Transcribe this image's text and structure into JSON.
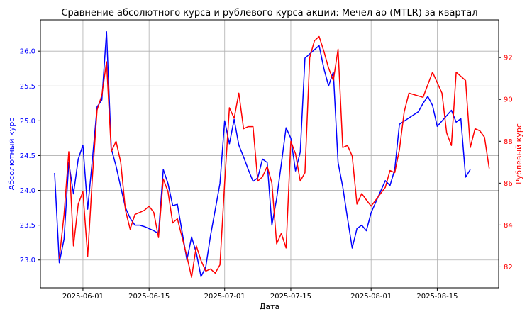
{
  "chart_data": {
    "type": "line",
    "title": "Сравнение абсолютного курса и рублевого курса акции: Мечел ао (MTLR) за квартал",
    "xlabel": "Дата",
    "ylabel_left": "Абсолютный курс",
    "ylabel_right": "Рублевый курс",
    "grid": true,
    "x_range": [
      "2025-05-23",
      "2025-08-28"
    ],
    "x_ticks": [
      "2025-06-01",
      "2025-06-15",
      "2025-07-01",
      "2025-07-15",
      "2025-08-01",
      "2025-08-15"
    ],
    "y_left_range": [
      22.6,
      26.45
    ],
    "y_left_ticks": [
      23.0,
      23.5,
      24.0,
      24.5,
      25.0,
      25.5,
      26.0
    ],
    "y_right_range": [
      81.0,
      93.8
    ],
    "y_right_ticks": [
      82,
      84,
      86,
      88,
      90,
      92
    ],
    "colors": {
      "absolute": "#0000ff",
      "ruble": "#ff0000",
      "grid": "#b0b0b0"
    },
    "series": [
      {
        "name": "",
        "axis": "left",
        "color": "#0000ff",
        "points": [
          [
            "2025-05-26",
            24.25
          ],
          [
            "2025-05-27",
            22.96
          ],
          [
            "2025-05-28",
            23.3
          ],
          [
            "2025-05-29",
            24.4
          ],
          [
            "2025-05-30",
            23.95
          ],
          [
            "2025-05-31",
            24.45
          ],
          [
            "2025-06-01",
            24.65
          ],
          [
            "2025-06-02",
            23.73
          ],
          [
            "2025-06-03",
            24.45
          ],
          [
            "2025-06-04",
            25.2
          ],
          [
            "2025-06-05",
            25.3
          ],
          [
            "2025-06-06",
            26.28
          ],
          [
            "2025-06-07",
            24.6
          ],
          [
            "2025-06-08",
            24.35
          ],
          [
            "2025-06-09",
            24.05
          ],
          [
            "2025-06-10",
            23.75
          ],
          [
            "2025-06-11",
            23.6
          ],
          [
            "2025-06-12",
            23.5
          ],
          [
            "2025-06-13",
            23.5
          ],
          [
            "2025-06-14",
            23.48
          ],
          [
            "2025-06-15",
            23.45
          ],
          [
            "2025-06-16",
            23.42
          ],
          [
            "2025-06-17",
            23.38
          ],
          [
            "2025-06-18",
            24.3
          ],
          [
            "2025-06-19",
            24.1
          ],
          [
            "2025-06-20",
            23.78
          ],
          [
            "2025-06-21",
            23.8
          ],
          [
            "2025-06-22",
            23.4
          ],
          [
            "2025-06-23",
            23.0
          ],
          [
            "2025-06-24",
            23.33
          ],
          [
            "2025-06-25",
            23.1
          ],
          [
            "2025-06-26",
            22.76
          ],
          [
            "2025-06-27",
            22.9
          ],
          [
            "2025-06-28",
            23.35
          ],
          [
            "2025-06-29",
            23.72
          ],
          [
            "2025-06-30",
            24.1
          ],
          [
            "2025-07-01",
            25.0
          ],
          [
            "2025-07-02",
            24.67
          ],
          [
            "2025-07-03",
            25.02
          ],
          [
            "2025-07-04",
            24.65
          ],
          [
            "2025-07-05",
            24.48
          ],
          [
            "2025-07-06",
            24.3
          ],
          [
            "2025-07-07",
            24.13
          ],
          [
            "2025-07-08",
            24.18
          ],
          [
            "2025-07-09",
            24.45
          ],
          [
            "2025-07-10",
            24.4
          ],
          [
            "2025-07-11",
            23.5
          ],
          [
            "2025-07-12",
            23.88
          ],
          [
            "2025-07-13",
            24.38
          ],
          [
            "2025-07-14",
            24.9
          ],
          [
            "2025-07-15",
            24.75
          ],
          [
            "2025-07-16",
            24.28
          ],
          [
            "2025-07-17",
            24.55
          ],
          [
            "2025-07-18",
            25.9
          ],
          [
            "2025-07-21",
            26.08
          ],
          [
            "2025-07-22",
            25.75
          ],
          [
            "2025-07-23",
            25.5
          ],
          [
            "2025-07-24",
            25.7
          ],
          [
            "2025-07-25",
            24.4
          ],
          [
            "2025-07-26",
            24.05
          ],
          [
            "2025-07-27",
            23.6
          ],
          [
            "2025-07-28",
            23.17
          ],
          [
            "2025-07-29",
            23.45
          ],
          [
            "2025-07-30",
            23.5
          ],
          [
            "2025-07-31",
            23.42
          ],
          [
            "2025-08-01",
            23.68
          ],
          [
            "2025-08-04",
            24.14
          ],
          [
            "2025-08-05",
            24.07
          ],
          [
            "2025-08-06",
            24.3
          ],
          [
            "2025-08-07",
            24.95
          ],
          [
            "2025-08-11",
            25.13
          ],
          [
            "2025-08-12",
            25.25
          ],
          [
            "2025-08-13",
            25.35
          ],
          [
            "2025-08-14",
            25.22
          ],
          [
            "2025-08-15",
            24.92
          ],
          [
            "2025-08-18",
            25.15
          ],
          [
            "2025-08-19",
            24.98
          ],
          [
            "2025-08-20",
            25.03
          ],
          [
            "2025-08-21",
            24.19
          ],
          [
            "2025-08-22",
            24.3
          ]
        ]
      },
      {
        "name": "",
        "axis": "right",
        "color": "#ff0000",
        "points": [
          [
            "2025-05-27",
            82.4
          ],
          [
            "2025-05-28",
            84.5
          ],
          [
            "2025-05-29",
            87.5
          ],
          [
            "2025-05-30",
            83.0
          ],
          [
            "2025-05-31",
            85.0
          ],
          [
            "2025-06-01",
            85.6
          ],
          [
            "2025-06-02",
            82.5
          ],
          [
            "2025-06-03",
            86.3
          ],
          [
            "2025-06-04",
            89.5
          ],
          [
            "2025-06-05",
            90.2
          ],
          [
            "2025-06-06",
            91.8
          ],
          [
            "2025-06-07",
            87.5
          ],
          [
            "2025-06-08",
            88.0
          ],
          [
            "2025-06-09",
            87.0
          ],
          [
            "2025-06-10",
            84.7
          ],
          [
            "2025-06-11",
            83.8
          ],
          [
            "2025-06-12",
            84.5
          ],
          [
            "2025-06-13",
            84.6
          ],
          [
            "2025-06-14",
            84.7
          ],
          [
            "2025-06-15",
            84.9
          ],
          [
            "2025-06-16",
            84.6
          ],
          [
            "2025-06-17",
            83.4
          ],
          [
            "2025-06-18",
            86.2
          ],
          [
            "2025-06-19",
            85.6
          ],
          [
            "2025-06-20",
            84.1
          ],
          [
            "2025-06-21",
            84.3
          ],
          [
            "2025-06-22",
            83.4
          ],
          [
            "2025-06-23",
            82.5
          ],
          [
            "2025-06-24",
            81.5
          ],
          [
            "2025-06-25",
            83.0
          ],
          [
            "2025-06-26",
            82.3
          ],
          [
            "2025-06-27",
            81.8
          ],
          [
            "2025-06-28",
            81.9
          ],
          [
            "2025-06-29",
            81.7
          ],
          [
            "2025-06-30",
            82.1
          ],
          [
            "2025-07-01",
            86.0
          ],
          [
            "2025-07-02",
            89.6
          ],
          [
            "2025-07-03",
            89.1
          ],
          [
            "2025-07-04",
            90.3
          ],
          [
            "2025-07-05",
            88.6
          ],
          [
            "2025-07-06",
            88.7
          ],
          [
            "2025-07-07",
            88.7
          ],
          [
            "2025-07-08",
            86.1
          ],
          [
            "2025-07-09",
            86.3
          ],
          [
            "2025-07-10",
            86.8
          ],
          [
            "2025-07-11",
            86.0
          ],
          [
            "2025-07-12",
            83.1
          ],
          [
            "2025-07-13",
            83.6
          ],
          [
            "2025-07-14",
            82.9
          ],
          [
            "2025-07-15",
            88.0
          ],
          [
            "2025-07-16",
            87.4
          ],
          [
            "2025-07-17",
            86.1
          ],
          [
            "2025-07-18",
            86.5
          ],
          [
            "2025-07-19",
            92.0
          ],
          [
            "2025-07-20",
            92.8
          ],
          [
            "2025-07-21",
            93.0
          ],
          [
            "2025-07-22",
            92.3
          ],
          [
            "2025-07-23",
            91.5
          ],
          [
            "2025-07-24",
            90.9
          ],
          [
            "2025-07-25",
            92.4
          ],
          [
            "2025-07-26",
            87.7
          ],
          [
            "2025-07-27",
            87.8
          ],
          [
            "2025-07-28",
            87.3
          ],
          [
            "2025-07-29",
            85.0
          ],
          [
            "2025-07-30",
            85.5
          ],
          [
            "2025-07-31",
            85.2
          ],
          [
            "2025-08-01",
            84.9
          ],
          [
            "2025-08-04",
            85.8
          ],
          [
            "2025-08-05",
            86.6
          ],
          [
            "2025-08-06",
            86.5
          ],
          [
            "2025-08-07",
            87.6
          ],
          [
            "2025-08-08",
            89.4
          ],
          [
            "2025-08-09",
            90.3
          ],
          [
            "2025-08-12",
            90.1
          ],
          [
            "2025-08-13",
            90.7
          ],
          [
            "2025-08-14",
            91.3
          ],
          [
            "2025-08-15",
            90.8
          ],
          [
            "2025-08-16",
            90.3
          ],
          [
            "2025-08-17",
            88.4
          ],
          [
            "2025-08-18",
            87.8
          ],
          [
            "2025-08-19",
            91.3
          ],
          [
            "2025-08-20",
            91.1
          ],
          [
            "2025-08-21",
            90.9
          ],
          [
            "2025-08-22",
            87.7
          ],
          [
            "2025-08-23",
            88.6
          ],
          [
            "2025-08-24",
            88.5
          ],
          [
            "2025-08-25",
            88.2
          ],
          [
            "2025-08-26",
            86.7
          ]
        ]
      }
    ]
  }
}
